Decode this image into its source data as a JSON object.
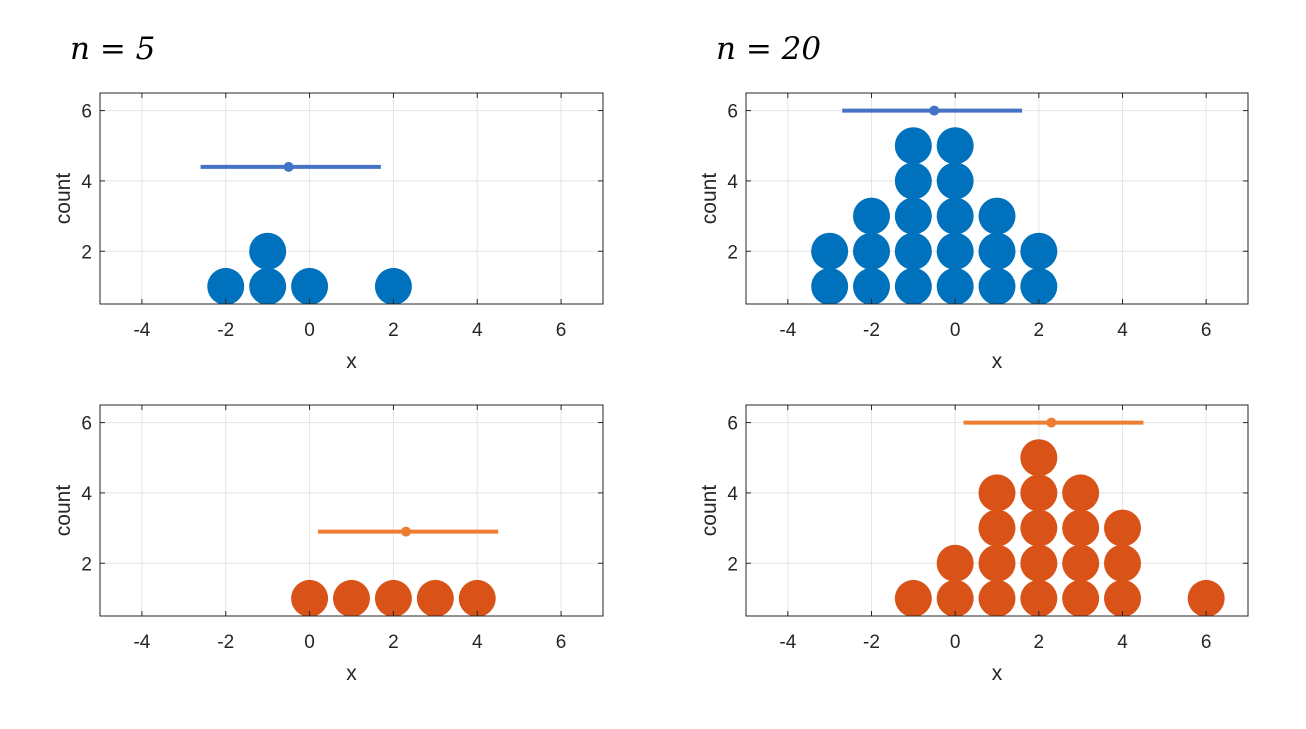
{
  "colors": {
    "blue": "#0072BD",
    "blue_bar": "#4472C4",
    "orange": "#D95319",
    "orange_bar": "#ED7D31",
    "grid": "#e5e5e5",
    "axis": "#262626"
  },
  "chart_data": [
    {
      "type": "scatter",
      "title": "n = 5",
      "xlabel": "x",
      "ylabel": "count",
      "xlim": [
        -5,
        7
      ],
      "ylim": [
        0.5,
        6.5
      ],
      "xticks": [
        -4,
        -2,
        0,
        2,
        4,
        6
      ],
      "yticks": [
        2,
        4,
        6
      ],
      "grid": true,
      "series": [
        {
          "color": "blue",
          "x": [
            -2,
            -1,
            -1,
            0,
            2
          ],
          "y": [
            1,
            1,
            2,
            1,
            1
          ]
        }
      ],
      "interval": {
        "center": -0.5,
        "low": -2.6,
        "high": 1.7,
        "y": 4.4,
        "color": "blue_bar"
      }
    },
    {
      "type": "scatter",
      "title": "n = 20",
      "xlabel": "x",
      "ylabel": "count",
      "xlim": [
        -5,
        7
      ],
      "ylim": [
        0.5,
        6.5
      ],
      "xticks": [
        -4,
        -2,
        0,
        2,
        4,
        6
      ],
      "yticks": [
        2,
        4,
        6
      ],
      "grid": true,
      "series": [
        {
          "color": "blue",
          "x": [
            -3,
            -3,
            -2,
            -2,
            -2,
            -1,
            -1,
            -1,
            -1,
            -1,
            0,
            0,
            0,
            0,
            0,
            1,
            1,
            1,
            2,
            2
          ],
          "y": [
            1,
            2,
            1,
            2,
            3,
            1,
            2,
            3,
            4,
            5,
            1,
            2,
            3,
            4,
            5,
            1,
            2,
            3,
            1,
            2
          ]
        }
      ],
      "interval": {
        "center": -0.5,
        "low": -2.7,
        "high": 1.6,
        "y": 6,
        "color": "blue_bar"
      }
    },
    {
      "type": "scatter",
      "title": "",
      "xlabel": "x",
      "ylabel": "count",
      "xlim": [
        -5,
        7
      ],
      "ylim": [
        0.5,
        6.5
      ],
      "xticks": [
        -4,
        -2,
        0,
        2,
        4,
        6
      ],
      "yticks": [
        2,
        4,
        6
      ],
      "grid": true,
      "series": [
        {
          "color": "orange",
          "x": [
            0,
            1,
            2,
            3,
            4
          ],
          "y": [
            1,
            1,
            1,
            1,
            1
          ]
        }
      ],
      "interval": {
        "center": 2.3,
        "low": 0.2,
        "high": 4.5,
        "y": 2.9,
        "color": "orange_bar"
      }
    },
    {
      "type": "scatter",
      "title": "",
      "xlabel": "x",
      "ylabel": "count",
      "xlim": [
        -5,
        7
      ],
      "ylim": [
        0.5,
        6.5
      ],
      "xticks": [
        -4,
        -2,
        0,
        2,
        4,
        6
      ],
      "yticks": [
        2,
        4,
        6
      ],
      "grid": true,
      "series": [
        {
          "color": "orange",
          "x": [
            -1,
            0,
            0,
            1,
            1,
            1,
            1,
            2,
            2,
            2,
            2,
            2,
            3,
            3,
            3,
            3,
            4,
            4,
            4,
            6
          ],
          "y": [
            1,
            1,
            2,
            1,
            2,
            3,
            4,
            1,
            2,
            3,
            4,
            5,
            1,
            2,
            3,
            4,
            1,
            2,
            3,
            1
          ]
        }
      ],
      "interval": {
        "center": 2.3,
        "low": 0.2,
        "high": 4.5,
        "y": 6,
        "color": "orange_bar"
      }
    }
  ]
}
